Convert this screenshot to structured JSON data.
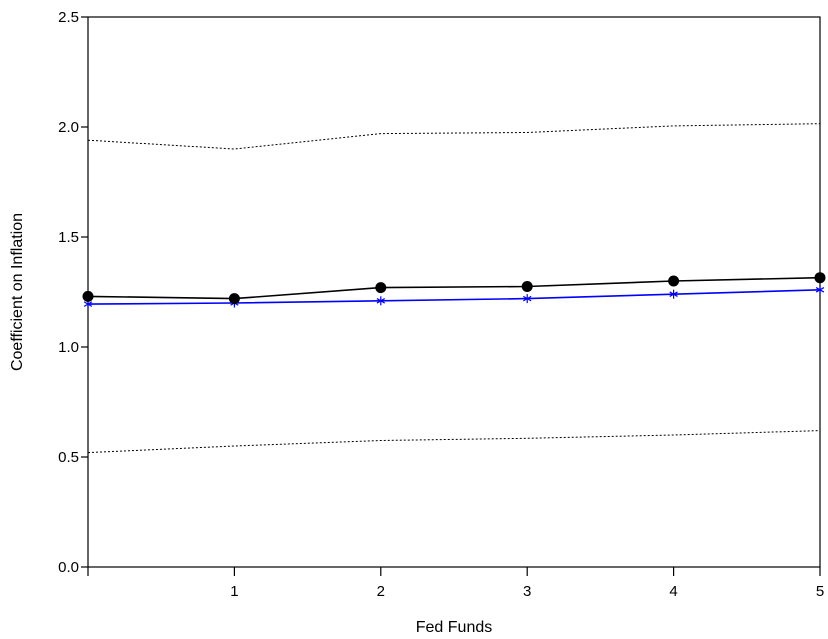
{
  "chart_data": {
    "type": "line",
    "title": "",
    "xlabel": "Fed Funds",
    "ylabel": "Coefficient on Inflation",
    "xlim": [
      0,
      5
    ],
    "ylim": [
      0,
      2.5
    ],
    "x_ticks": [
      1,
      2,
      3,
      4,
      5
    ],
    "x_tick_labels": [
      "1",
      "2",
      "3",
      "4",
      "5"
    ],
    "y_ticks": [
      0,
      0.5,
      1,
      1.5,
      2,
      2.5
    ],
    "y_tick_labels": [
      "0.0",
      "0.5",
      "1.0",
      "1.5",
      "2.0",
      "2.5"
    ],
    "grid": false,
    "legend": "none",
    "x": [
      0,
      1,
      2,
      3,
      4,
      5
    ],
    "series": [
      {
        "values": [
          1.23,
          1.22,
          1.27,
          1.275,
          1.3,
          1.315
        ],
        "color": "#000000",
        "marker": "circle",
        "line": "solid"
      },
      {
        "values": [
          1.195,
          1.2,
          1.21,
          1.22,
          1.24,
          1.26
        ],
        "color": "#0000ff",
        "marker": "asterisk",
        "line": "solid"
      },
      {
        "values": [
          1.94,
          1.9,
          1.97,
          1.975,
          2.005,
          2.015
        ],
        "color": "#000000",
        "marker": "none",
        "line": "dotted"
      },
      {
        "values": [
          0.52,
          0.55,
          0.575,
          0.585,
          0.6,
          0.62
        ],
        "color": "#000000",
        "marker": "none",
        "line": "dotted"
      }
    ]
  }
}
